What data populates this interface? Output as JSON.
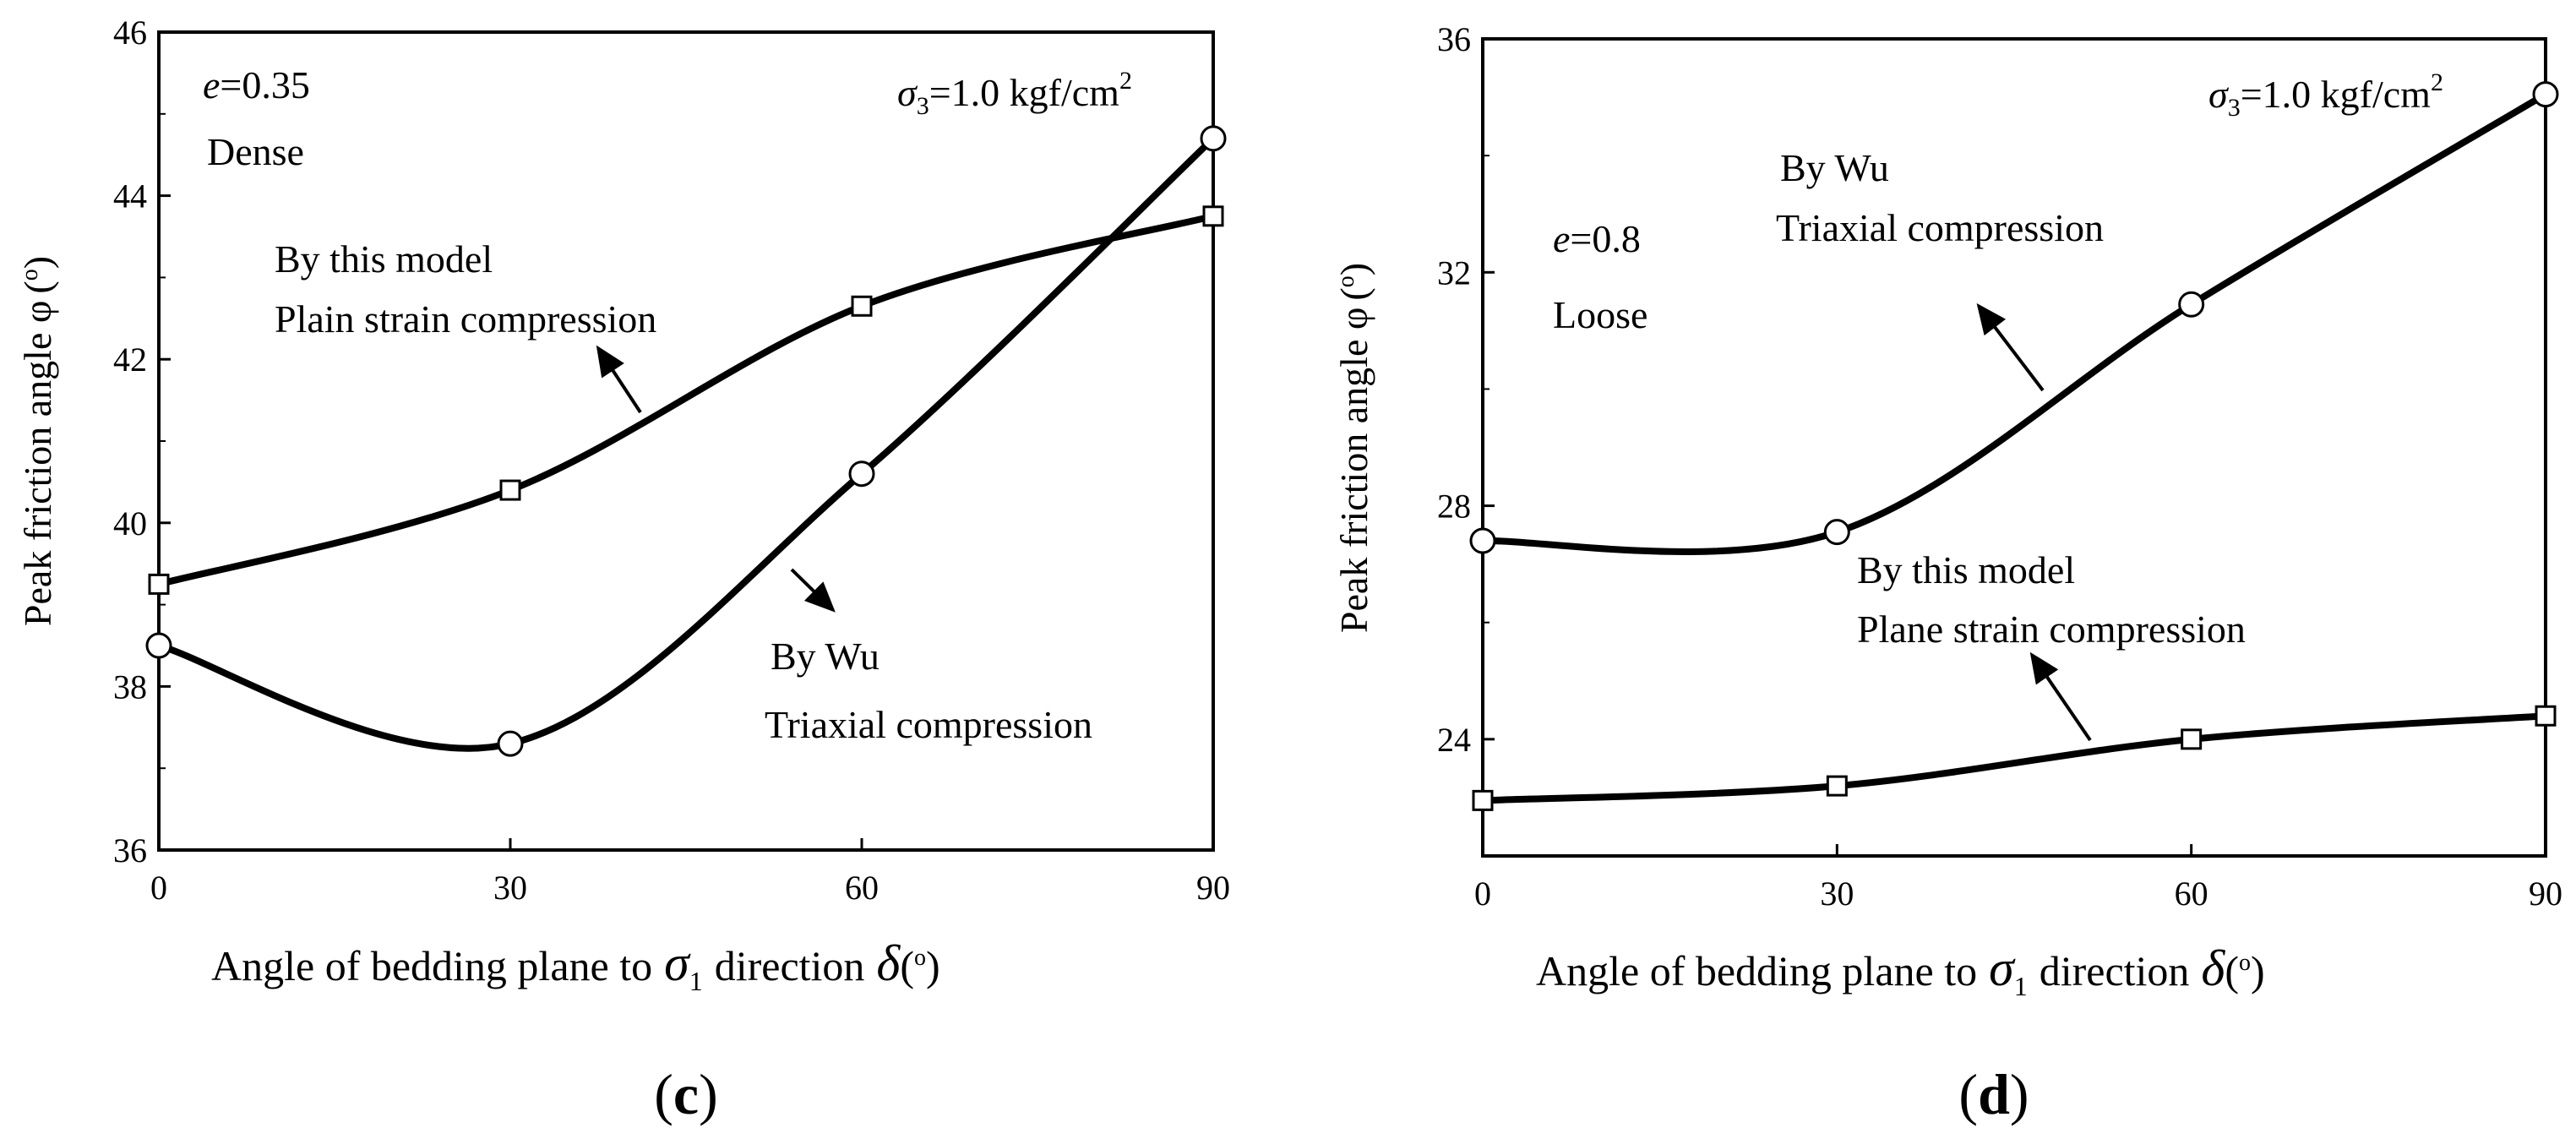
{
  "chart_data": [
    {
      "type": "line",
      "panel_label": {
        "open": "(",
        "letter": "c",
        "close": ")"
      },
      "x": [
        0,
        30,
        60,
        90
      ],
      "xlim": [
        0,
        90
      ],
      "ylim": [
        36,
        46
      ],
      "xticks": [
        "0",
        "30",
        "60",
        "90"
      ],
      "yticks": [
        "36",
        "38",
        "40",
        "42",
        "44",
        "46"
      ],
      "xlabel": {
        "text": "Angle of bedding plane to",
        "sym": "σ",
        "sub": "1",
        "mid": "direction",
        "sym2": "δ",
        "unit_open": "(",
        "unit_deg": "o",
        "unit_close": ")"
      },
      "ylabel": {
        "text": "Peak friction angle φ",
        "unit_open": "(",
        "unit_deg": "o",
        "unit_close": ")"
      },
      "series": [
        {
          "name": "By this model Plain strain compression",
          "marker": "square",
          "values": [
            39.25,
            40.4,
            42.65,
            43.75
          ]
        },
        {
          "name": "By Wu Triaxial compression",
          "marker": "circle",
          "values": [
            38.5,
            37.3,
            40.6,
            44.7
          ]
        }
      ],
      "annotations": {
        "e_var": "e",
        "e_val": "=0.35",
        "density": "Dense",
        "sigma": "σ",
        "sigma_sub": "3",
        "sigma_val": "=1.0 kgf/cm",
        "sigma_sup": "2",
        "model_line1": "By this model",
        "model_line2": "Plain strain compression",
        "wu_line1": "By Wu",
        "wu_line2": "Triaxial compression"
      }
    },
    {
      "type": "line",
      "panel_label": {
        "open": "(",
        "letter": "d",
        "close": ")"
      },
      "x": [
        0,
        30,
        60,
        90
      ],
      "xlim": [
        0,
        90
      ],
      "ylim": [
        22,
        36
      ],
      "xticks": [
        "0",
        "30",
        "60",
        "90"
      ],
      "yticks": [
        "24",
        "28",
        "32",
        "36"
      ],
      "xlabel": {
        "text": "Angle of bedding plane to",
        "sym": "σ",
        "sub": "1",
        "mid": "direction",
        "sym2": "δ",
        "unit_open": "(",
        "unit_deg": "o",
        "unit_close": ")"
      },
      "ylabel": {
        "text": "Peak friction angle φ",
        "unit_open": "(",
        "unit_deg": "o",
        "unit_close": ")"
      },
      "series": [
        {
          "name": "By Wu Triaxial compression",
          "marker": "circle",
          "values": [
            27.4,
            27.55,
            31.45,
            35.05
          ]
        },
        {
          "name": "By this model Plane strain compression",
          "marker": "square",
          "values": [
            22.95,
            23.2,
            24.0,
            24.4
          ]
        }
      ],
      "annotations": {
        "e_var": "e",
        "e_val": "=0.8",
        "density": "Loose",
        "sigma": "σ",
        "sigma_sub": "3",
        "sigma_val": "=1.0 kgf/cm",
        "sigma_sup": "2",
        "wu_line1": "By Wu",
        "wu_line2": "Triaxial compression",
        "model_line1": "By this model",
        "model_line2": "Plane strain compression"
      }
    }
  ]
}
